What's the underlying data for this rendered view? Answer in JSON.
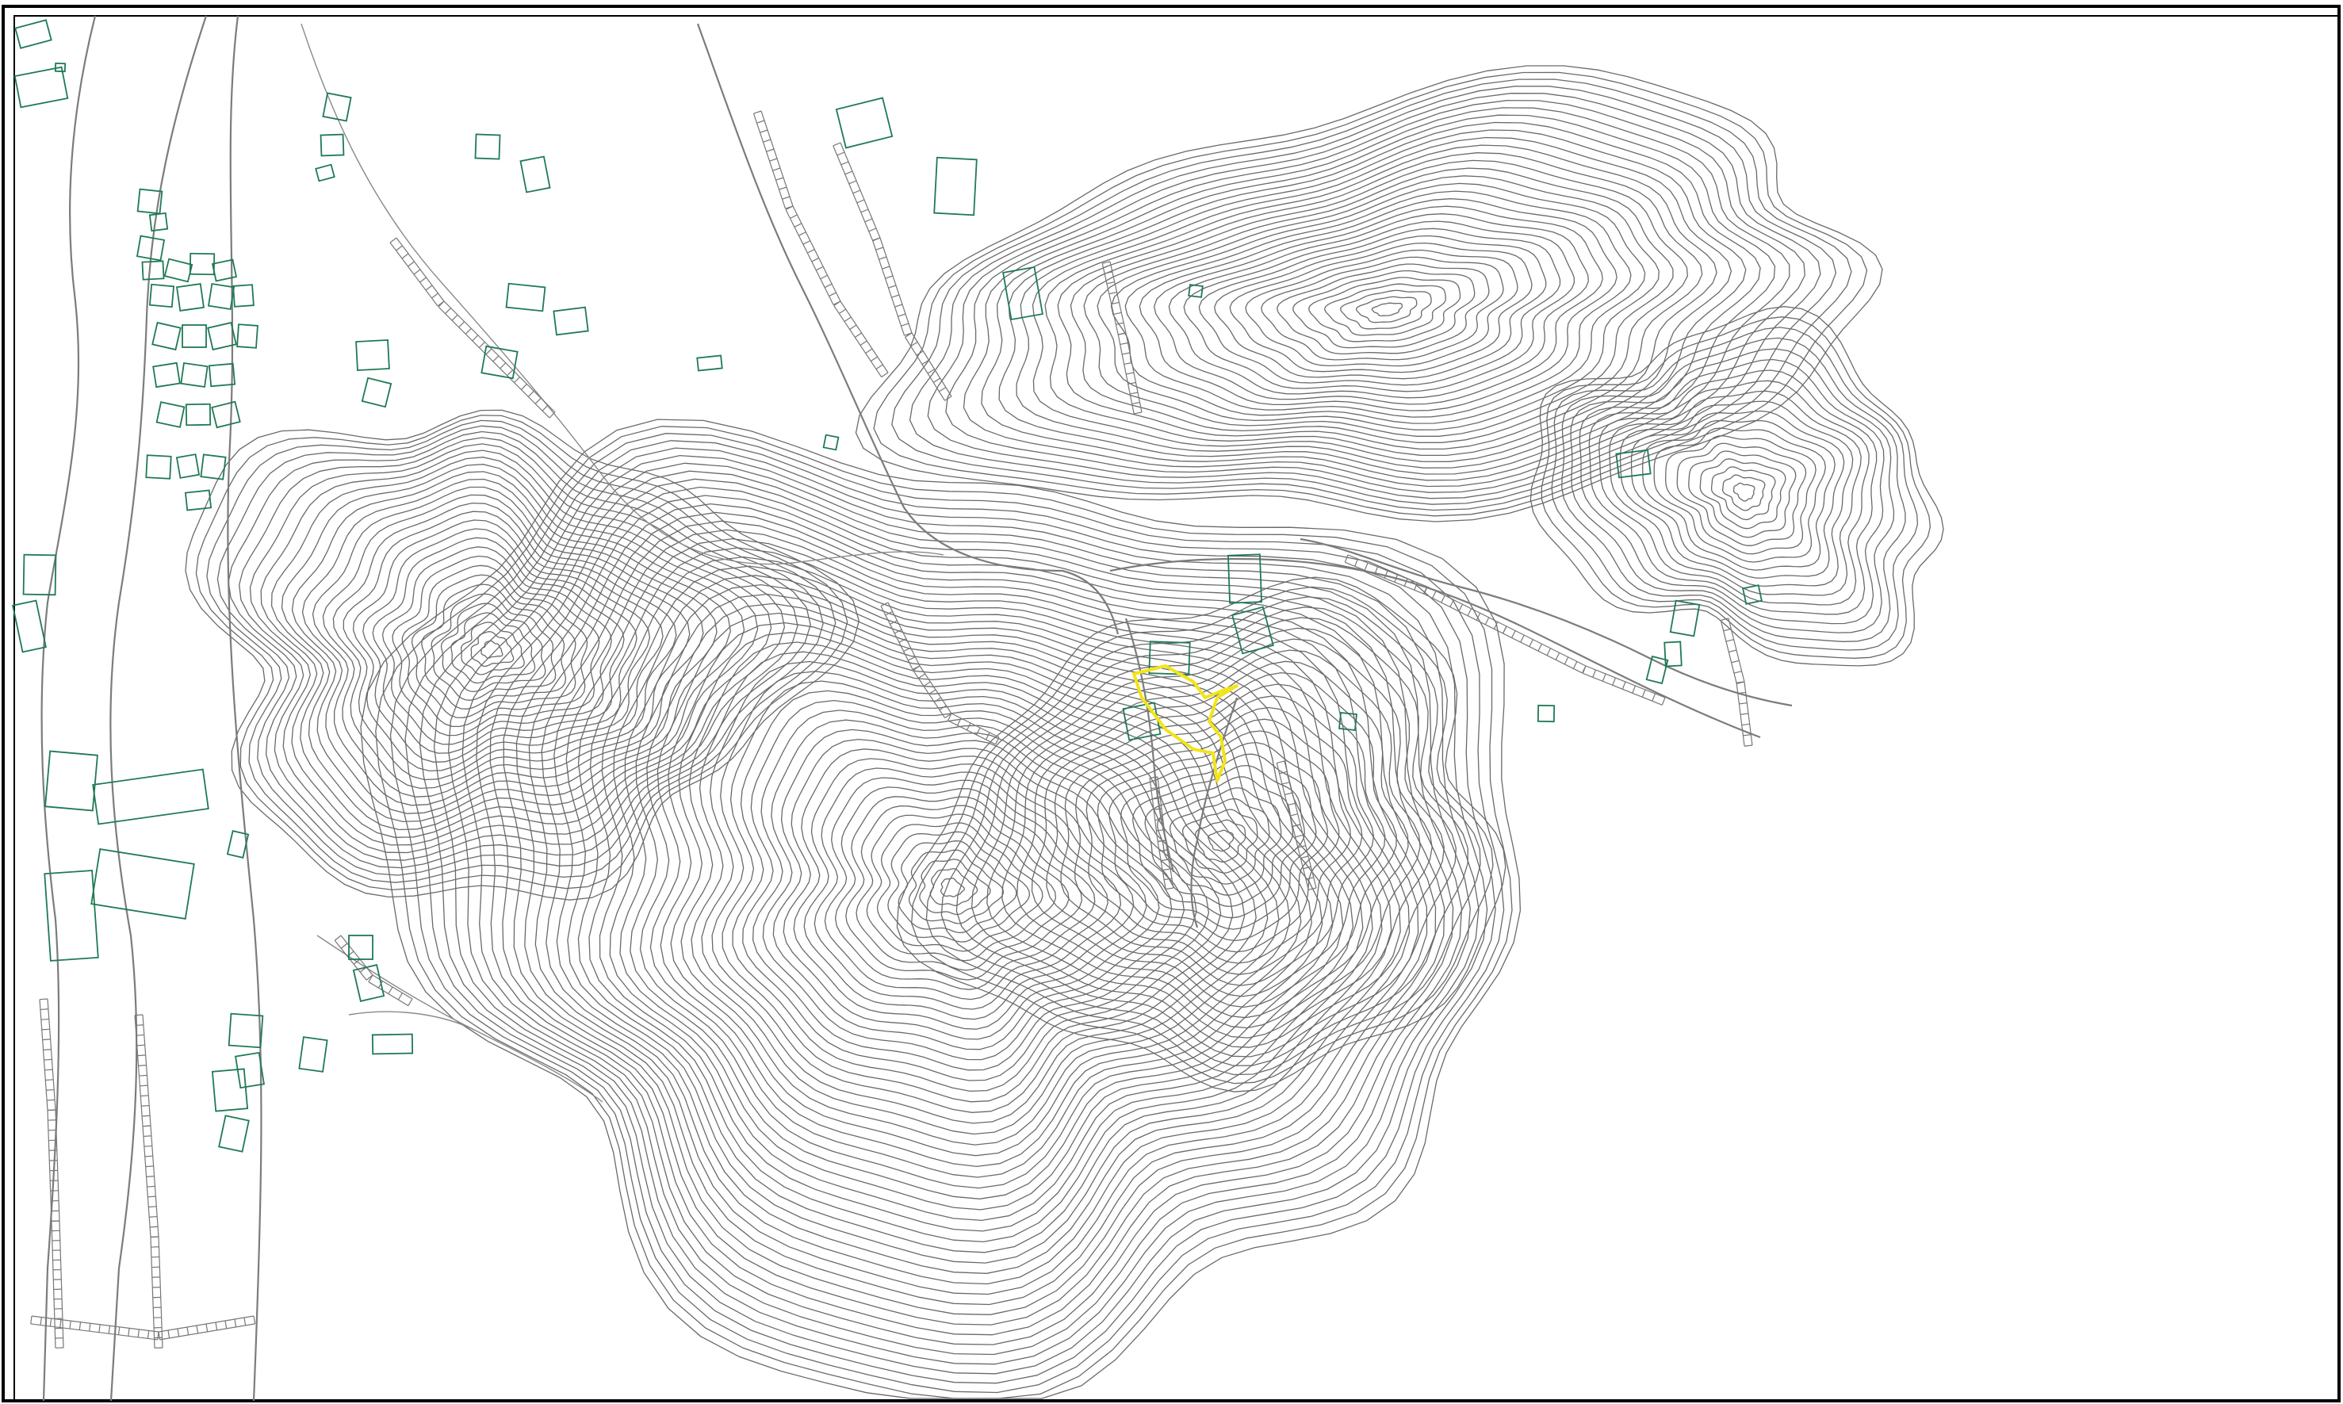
{
  "map": {
    "kind": "topographic site plan",
    "labels": [],
    "colors": {
      "background": "#ffffff",
      "frame": "#000000",
      "contour": "#6a6a6a",
      "road": "#7c7c7c",
      "building": "#1f7a55",
      "site_boundary": "#f2e419"
    },
    "features": [
      "contour-lines",
      "roads",
      "terraced-retaining-walls",
      "buildings",
      "site-boundary"
    ]
  }
}
